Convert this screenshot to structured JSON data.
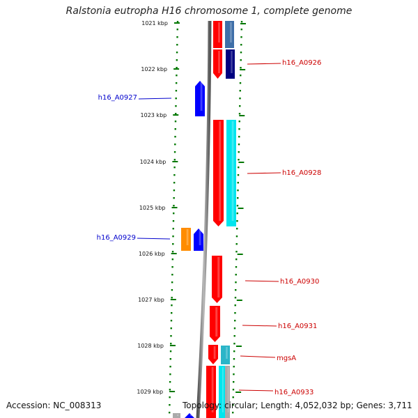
{
  "title": "Ralstonia eutropha H16 chromosome 1, complete genome",
  "footer": {
    "accession": "Accession: NC_008313",
    "topology": "Topology: circular; Length: 4,052,032 bp; Genes: 3,711"
  },
  "ticks": [
    "1021 kbp",
    "1022 kbp",
    "1023 kbp",
    "1024 kbp",
    "1025 kbp",
    "1026 kbp",
    "1027 kbp",
    "1028 kbp",
    "1029 kbp"
  ],
  "colors": {
    "forward_label": "#cc0000",
    "reverse_label": "#0000cc",
    "cds_red": "#ff0000",
    "cds_blue": "#0000ff",
    "cds_orange": "#ff8c00",
    "cds_cyan": "#00e5ee",
    "cds_teal": "#2ab5c8",
    "cds_steelblue": "#3f6fa8",
    "cds_navy": "#000080",
    "cds_grey": "#aaaaaa",
    "backbone": "#888888",
    "ruler": "#007700"
  },
  "gene_labels": [
    {
      "text": "h16_A0926",
      "strand": "forward"
    },
    {
      "text": "h16_A0927",
      "strand": "reverse"
    },
    {
      "text": "h16_A0928",
      "strand": "forward"
    },
    {
      "text": "h16_A0929",
      "strand": "reverse"
    },
    {
      "text": "h16_A0930",
      "strand": "forward"
    },
    {
      "text": "h16_A0931",
      "strand": "forward"
    },
    {
      "text": "mgsA",
      "strand": "forward"
    },
    {
      "text": "h16_A0933",
      "strand": "forward"
    }
  ]
}
